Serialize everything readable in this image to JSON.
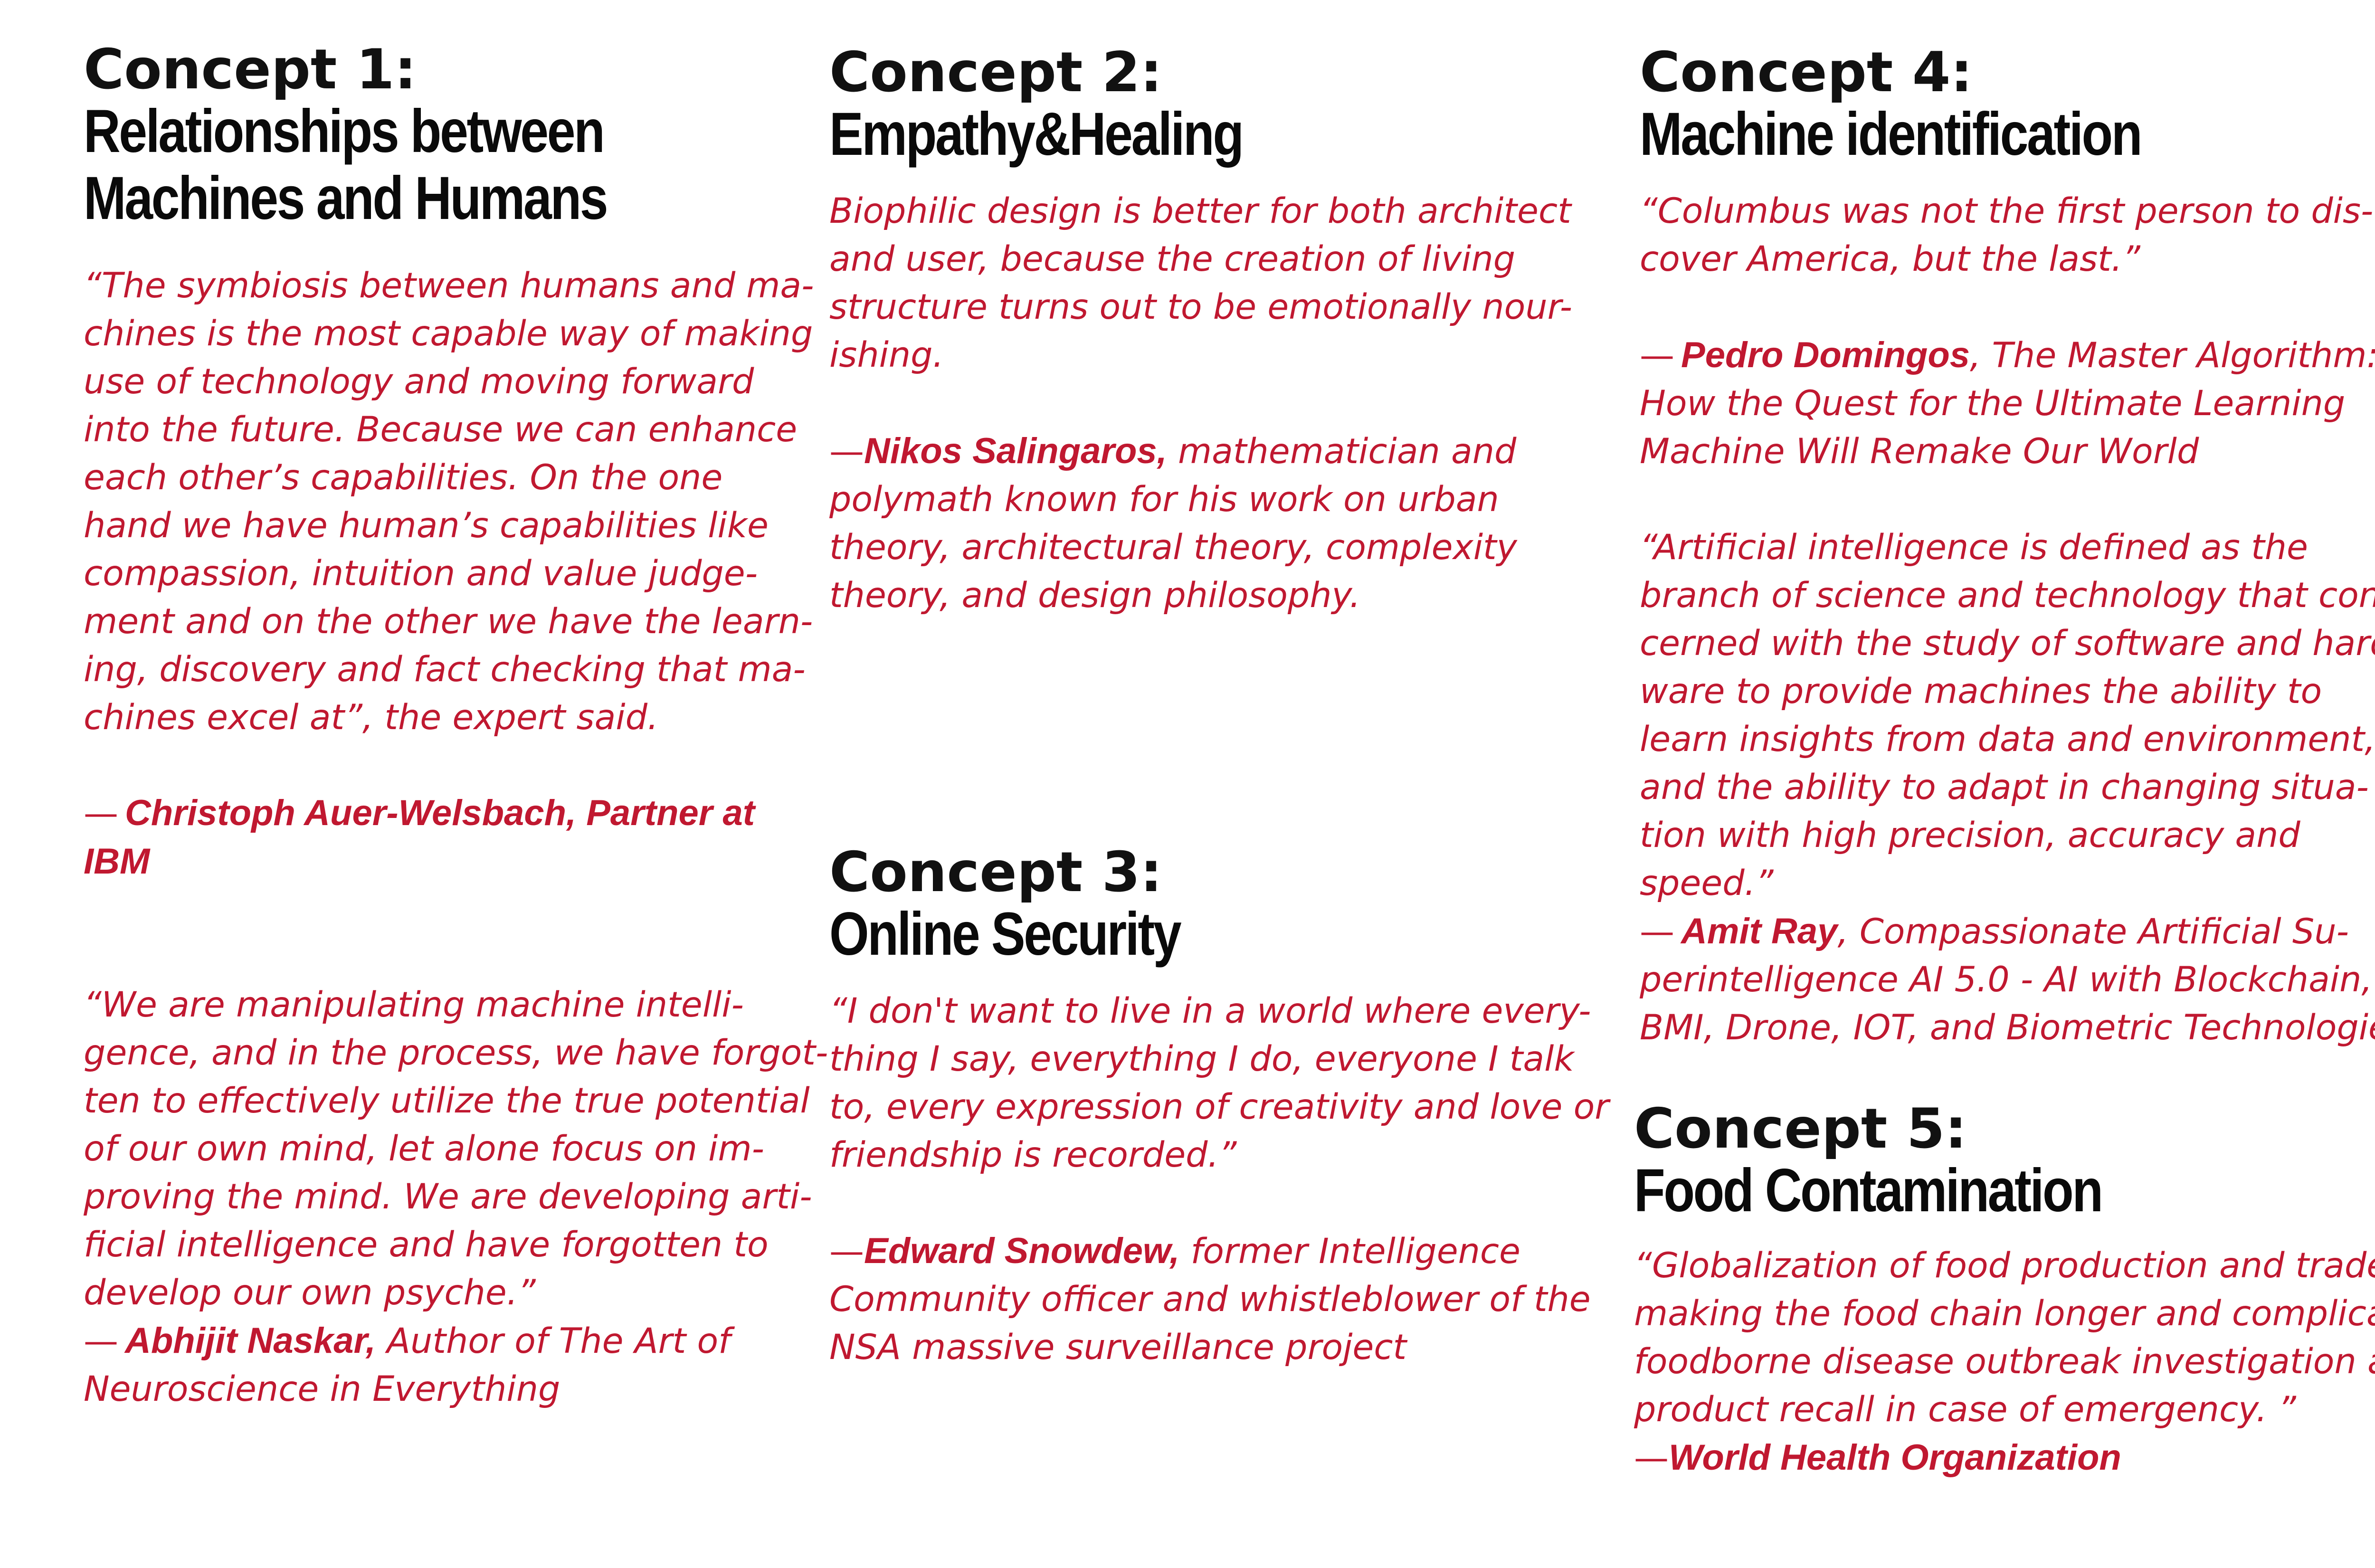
{
  "concept1": {
    "number": "Concept 1:",
    "title_lines": [
      "Relationships between",
      "Machines and Humans"
    ],
    "quote1_lines": [
      "“The symbiosis between humans and ma-",
      "chines is the most capable way of making",
      "use of technology and moving forward",
      "into the future. Because we can enhance",
      "each other’s capabilities. On the one",
      "hand we have human’s capabilities like",
      "compassion, intuition and value judge-",
      "ment and on the other we have the learn-",
      "ing, discovery and fact checking that ma-",
      "chines excel at”, the expert said."
    ],
    "attr1_dash": "—",
    "attr1_name_lines": [
      "Christoph Auer-Welsbach, Partner at",
      "IBM"
    ],
    "quote2_lines": [
      "“We are manipulating machine intelli-",
      "gence, and in the process, we have forgot-",
      "ten to effectively utilize the true potential",
      "of our own mind, let alone focus on im-",
      "proving the mind. We are developing arti-",
      "ficial intelligence and have forgotten to",
      "develop our own psyche.”"
    ],
    "attr2_dash": "—",
    "attr2_name": "Abhijit Naskar,",
    "attr2_rest_line1": " Author of The Art of",
    "attr2_rest_line2": "Neuroscience in Everything"
  },
  "concept2": {
    "number": "Concept 2:",
    "title": "Empathy&Healing",
    "quote_lines": [
      "Biophilic design is better for both architect",
      "and user, because the creation of living",
      "structure turns out to be emotionally nour-",
      "ishing."
    ],
    "attr_dash": "—",
    "attr_name": "Nikos Salingaros,",
    "attr_rest_lines": [
      " mathematician and",
      "polymath known for his work on urban",
      "theory, architectural theory, complexity",
      "theory, and design philosophy."
    ]
  },
  "concept3": {
    "number": "Concept 3:",
    "title": "Online Security",
    "quote_lines": [
      "“I don't want to live in a world where every-",
      "thing I say, everything I do, everyone I talk",
      "to, every expression of creativity and love or",
      "friendship is recorded.”"
    ],
    "attr_dash": "—",
    "attr_name": "Edward Snowdew,",
    "attr_rest_lines": [
      " former Intelligence",
      "Community officer and whistleblower of the",
      "NSA massive surveillance project"
    ]
  },
  "concept4": {
    "number": "Concept 4:",
    "title": "Machine identification",
    "quote1_lines": [
      "“Columbus was not the first person to dis-",
      "cover America, but the last.”"
    ],
    "attr1_dash": "—",
    "attr1_name": "Pedro Domingos",
    "attr1_rest_lines": [
      ", The Master Algorithm:",
      "How the Quest for the Ultimate Learning",
      "Machine Will Remake Our World"
    ],
    "quote2_lines": [
      "“Artificial intelligence is defined as the",
      "branch of science and technology that con-",
      "cerned with the study of software and hard-",
      "ware to provide machines the ability to",
      "learn insights from data and environment,",
      "and the ability to adapt in changing situa-",
      "tion with high precision, accuracy and",
      "speed.”"
    ],
    "attr2_dash": "—",
    "attr2_name": "Amit Ray",
    "attr2_rest_lines": [
      ", Compassionate Artificial Su-",
      "perintelligence AI 5.0 - AI with Blockchain,",
      "BMI, Drone, IOT, and Biometric Technologies"
    ]
  },
  "concept5": {
    "number": "Concept 5:",
    "title": "Food Contamination",
    "quote_lines": [
      "“Globalization of food production and trade is",
      "making the food chain longer and complicates",
      "foodborne disease outbreak investigation and",
      "product recall in case of emergency.  ”"
    ],
    "attr_dash": "—",
    "attr_name": "World Health Organization"
  },
  "colors": {
    "heading": "#111111",
    "quote": "#c01830",
    "background": "#ffffff"
  }
}
